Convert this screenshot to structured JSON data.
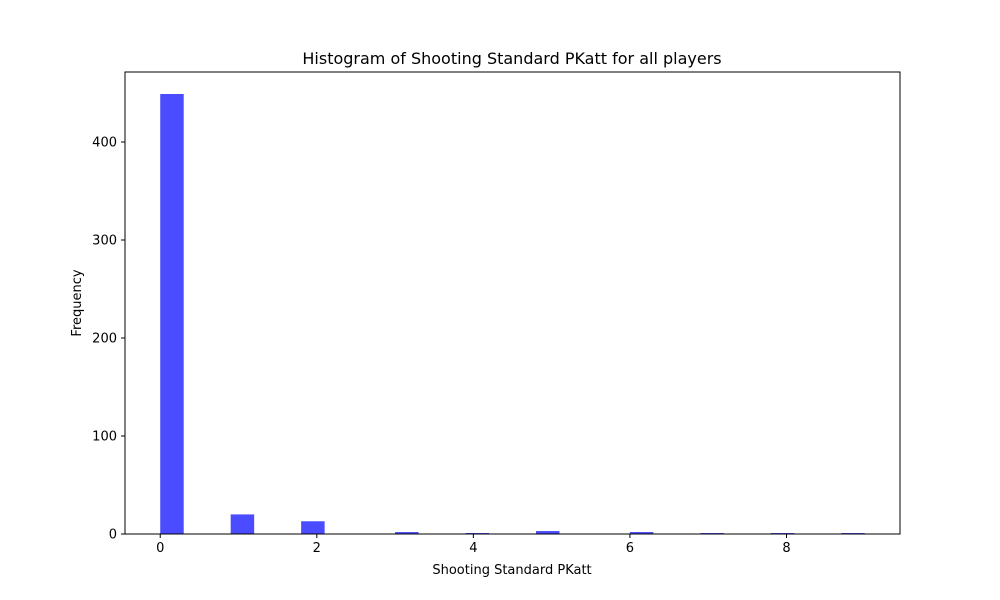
{
  "chart_data": {
    "type": "bar",
    "title": "Histogram of Shooting Standard PKatt for all players",
    "xlabel": "Shooting Standard PKatt",
    "ylabel": "Frequency",
    "bar_color": "#4b4bff",
    "bins": [
      {
        "x0": 0.0,
        "x1": 0.3,
        "count": 449
      },
      {
        "x0": 0.9,
        "x1": 1.2,
        "count": 20
      },
      {
        "x0": 1.8,
        "x1": 2.1,
        "count": 13
      },
      {
        "x0": 3.0,
        "x1": 3.3,
        "count": 2
      },
      {
        "x0": 3.9,
        "x1": 4.2,
        "count": 1
      },
      {
        "x0": 4.8,
        "x1": 5.1,
        "count": 3
      },
      {
        "x0": 6.0,
        "x1": 6.3,
        "count": 2
      },
      {
        "x0": 6.9,
        "x1": 7.2,
        "count": 1
      },
      {
        "x0": 7.8,
        "x1": 8.1,
        "count": 1
      },
      {
        "x0": 8.7,
        "x1": 9.0,
        "count": 1
      }
    ],
    "xlim": [
      -0.45,
      9.45
    ],
    "ylim": [
      0,
      471.45
    ],
    "xticks": [
      0,
      2,
      4,
      6,
      8
    ],
    "yticks": [
      0,
      100,
      200,
      300,
      400
    ],
    "grid": false
  }
}
